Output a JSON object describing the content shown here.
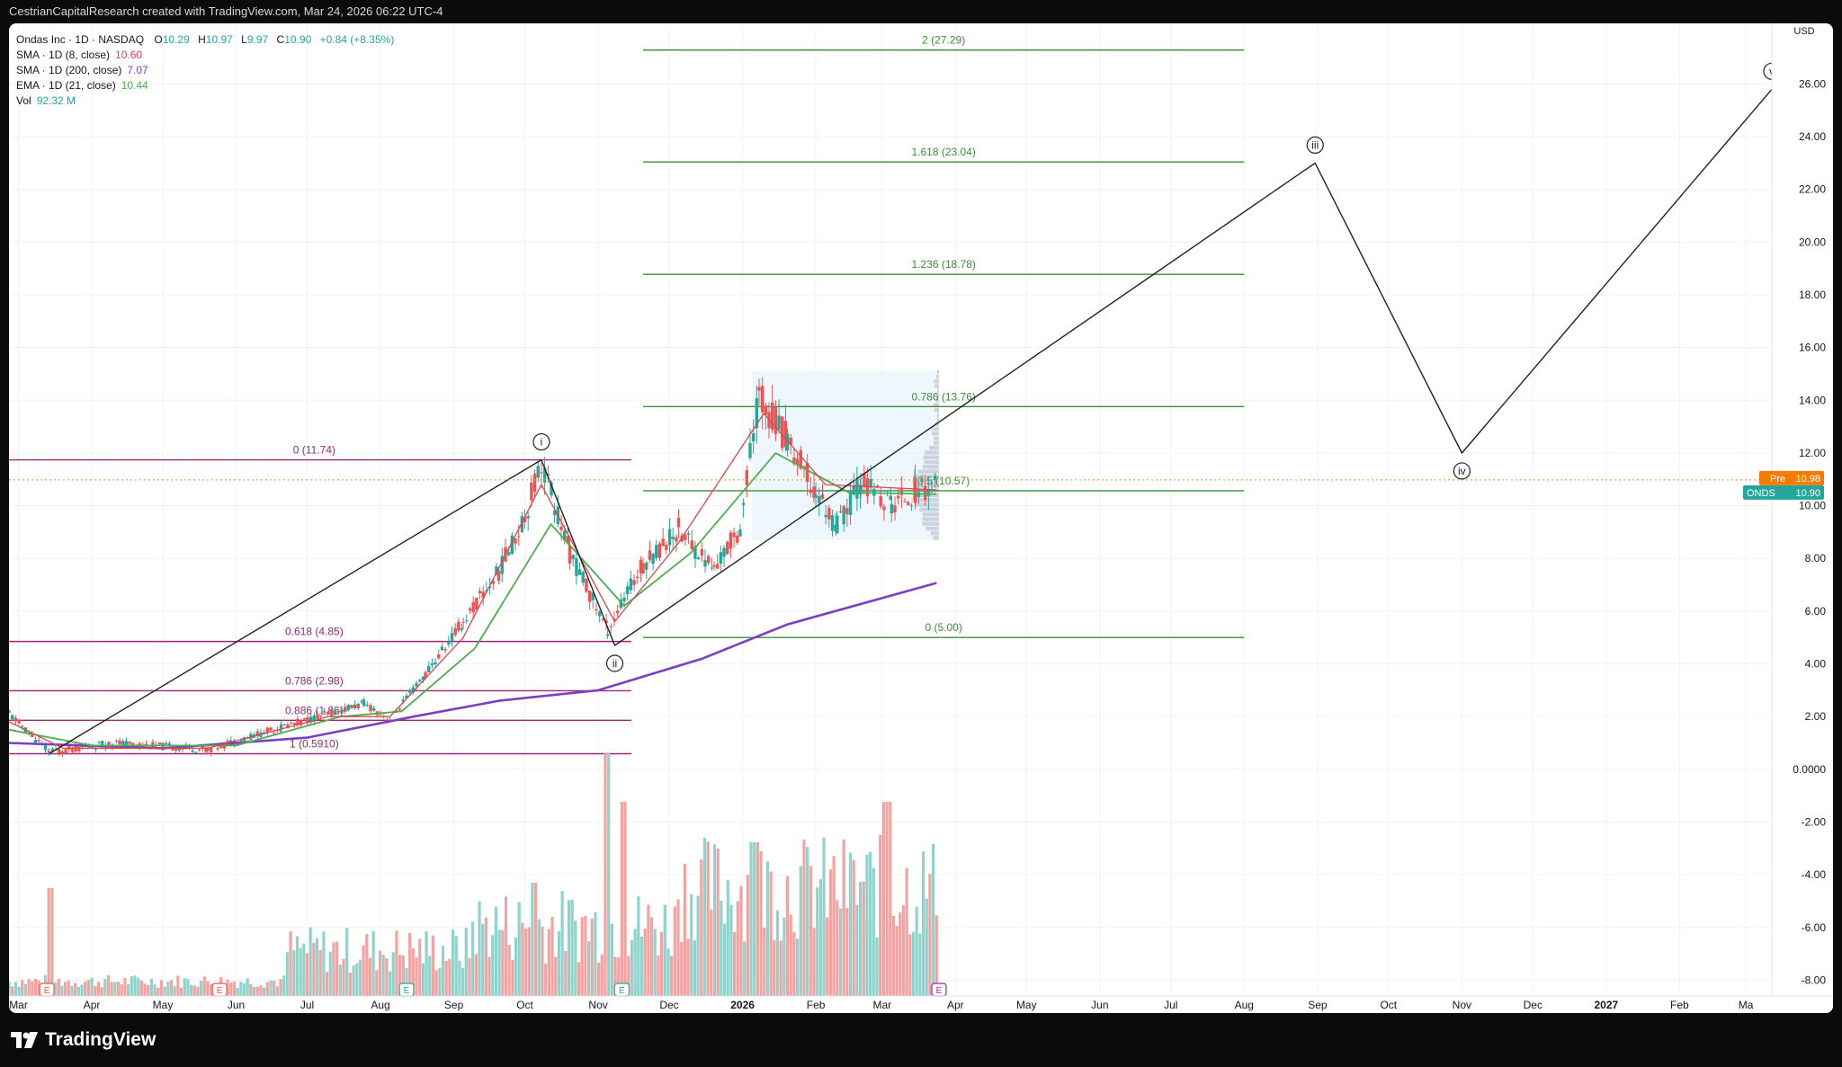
{
  "header": {
    "attribution": "CestrianCapitalResearch created with TradingView.com, Mar 24, 2026 06:22 UTC-4"
  },
  "legend": {
    "symbol_line": "Ondas Inc · 1D · NASDAQ",
    "ohlc": [
      {
        "label": "O",
        "value": "10.29"
      },
      {
        "label": "H",
        "value": "10.97"
      },
      {
        "label": "L",
        "value": "9.97"
      },
      {
        "label": "C",
        "value": "10.90"
      }
    ],
    "change": "+0.84 (+8.35%)",
    "indicators": [
      {
        "label": "SMA · 1D (8, close)",
        "value": "10.60",
        "color": "#e0444f"
      },
      {
        "label": "SMA · 1D (200, close)",
        "value": "7.07",
        "color": "#7b3fc4"
      },
      {
        "label": "EMA · 1D (21, close)",
        "value": "10.44",
        "color": "#4caf50"
      },
      {
        "label": "Vol",
        "value": "92.32 M",
        "color": "#26a69a"
      }
    ]
  },
  "colors": {
    "up": "#26a69a",
    "down": "#ef5350",
    "fib_left": "#9c2773",
    "fib_right": "#3f8b3f",
    "sma200": "#7b3fc4",
    "ema21": "#4caf50",
    "sma8": "#e0444f",
    "pre_badge": "#f57c00",
    "price_badge": "#26a69a"
  },
  "chart_data": {
    "type": "candlestick",
    "symbol": "ONDS",
    "currency": "USD",
    "y_axis_ticks": [
      "26.00",
      "24.00",
      "22.00",
      "20.00",
      "18.00",
      "16.00",
      "14.00",
      "12.00",
      "10.00",
      "8.00",
      "6.00",
      "4.00",
      "2.00",
      "0.0000",
      "-2.00",
      "-4.00",
      "-6.00",
      "-8.00"
    ],
    "ylim": [
      -8.6,
      28.3
    ],
    "x_axis_labels": [
      "Mar",
      "Apr",
      "May",
      "Jun",
      "Jul",
      "Aug",
      "Sep",
      "Oct",
      "Nov",
      "Dec",
      "2026",
      "Feb",
      "Mar",
      "Apr",
      "May",
      "Jun",
      "Jul",
      "Aug",
      "Sep",
      "Oct",
      "Nov",
      "Dec",
      "2027",
      "Feb",
      "Ma"
    ],
    "x_axis_dates": [
      "2025-03-01",
      "2025-04-01",
      "2025-05-01",
      "2025-06-01",
      "2025-07-01",
      "2025-08-01",
      "2025-09-01",
      "2025-10-01",
      "2025-11-01",
      "2025-12-01",
      "2026-01-01",
      "2026-02-01",
      "2026-03-01",
      "2026-04-01",
      "2026-05-01",
      "2026-06-01",
      "2026-07-01",
      "2026-08-01",
      "2026-09-01",
      "2026-10-01",
      "2026-11-01",
      "2026-12-01",
      "2027-01-01",
      "2027-02-01",
      "2027-03-01"
    ],
    "price_path": [
      [
        "2025-02-25",
        2.1
      ],
      [
        "2025-03-14",
        0.65
      ],
      [
        "2025-04-10",
        1.0
      ],
      [
        "2025-05-20",
        0.75
      ],
      [
        "2025-06-20",
        1.6
      ],
      [
        "2025-07-10",
        2.1
      ],
      [
        "2025-07-25",
        2.5
      ],
      [
        "2025-08-05",
        1.9
      ],
      [
        "2025-08-20",
        3.6
      ],
      [
        "2025-09-05",
        5.6
      ],
      [
        "2025-09-20",
        7.5
      ],
      [
        "2025-10-01",
        9.6
      ],
      [
        "2025-10-08",
        11.7
      ],
      [
        "2025-10-20",
        8.2
      ],
      [
        "2025-11-05",
        5.3
      ],
      [
        "2025-11-20",
        7.8
      ],
      [
        "2025-12-05",
        9.1
      ],
      [
        "2025-12-20",
        7.6
      ],
      [
        "2025-12-31",
        9.2
      ],
      [
        "2026-01-08",
        14.2
      ],
      [
        "2026-01-20",
        12.5
      ],
      [
        "2026-02-01",
        10.5
      ],
      [
        "2026-02-10",
        9.2
      ],
      [
        "2026-02-20",
        10.9
      ],
      [
        "2026-03-05",
        10.0
      ],
      [
        "2026-03-15",
        10.6
      ],
      [
        "2026-03-24",
        10.9
      ]
    ],
    "sma8_path": [
      [
        "2025-02-25",
        1.8
      ],
      [
        "2025-03-20",
        0.8
      ],
      [
        "2025-05-20",
        0.8
      ],
      [
        "2025-07-10",
        2.0
      ],
      [
        "2025-08-05",
        2.0
      ],
      [
        "2025-09-05",
        5.0
      ],
      [
        "2025-10-08",
        10.8
      ],
      [
        "2025-11-08",
        5.6
      ],
      [
        "2025-12-05",
        8.6
      ],
      [
        "2026-01-10",
        13.5
      ],
      [
        "2026-02-05",
        10.8
      ],
      [
        "2026-03-24",
        10.6
      ]
    ],
    "ema21_path": [
      [
        "2025-02-25",
        1.5
      ],
      [
        "2025-04-01",
        0.9
      ],
      [
        "2025-06-01",
        0.9
      ],
      [
        "2025-07-15",
        2.0
      ],
      [
        "2025-08-10",
        2.2
      ],
      [
        "2025-09-10",
        4.6
      ],
      [
        "2025-10-12",
        9.3
      ],
      [
        "2025-11-12",
        6.2
      ],
      [
        "2025-12-10",
        8.2
      ],
      [
        "2026-01-15",
        12.0
      ],
      [
        "2026-02-15",
        10.5
      ],
      [
        "2026-03-24",
        10.44
      ]
    ],
    "sma200_path": [
      [
        "2025-02-25",
        1.0
      ],
      [
        "2025-05-01",
        0.8
      ],
      [
        "2025-07-01",
        1.2
      ],
      [
        "2025-08-15",
        2.0
      ],
      [
        "2025-09-20",
        2.6
      ],
      [
        "2025-11-01",
        3.0
      ],
      [
        "2025-12-15",
        4.2
      ],
      [
        "2026-01-20",
        5.5
      ],
      [
        "2026-03-24",
        7.07
      ]
    ],
    "volume": {
      "bars_from": "2025-02-25",
      "bars_to": "2026-03-24",
      "scale_max": 100,
      "spikes": [
        [
          "2025-03-14",
          40
        ],
        [
          "2025-11-05",
          90
        ],
        [
          "2025-11-12",
          72
        ],
        [
          "2026-03-03",
          72
        ],
        [
          "2026-01-06",
          57
        ],
        [
          "2025-10-05",
          42
        ]
      ]
    },
    "earnings_markers": [
      {
        "date": "2025-03-13",
        "label": "E",
        "kind": "red"
      },
      {
        "date": "2025-05-25",
        "label": "E",
        "kind": "red"
      },
      {
        "date": "2025-08-12",
        "label": "E",
        "kind": "green"
      },
      {
        "date": "2025-11-11",
        "label": "E",
        "kind": "green"
      },
      {
        "date": "2026-03-25",
        "label": "E",
        "kind": "purple"
      }
    ],
    "fib_left": {
      "x_from": "2025-02-20",
      "x_to": "2025-11-15",
      "levels": [
        {
          "label": "0 (11.74)",
          "value": 11.74
        },
        {
          "label": "0.618 (4.85)",
          "value": 4.85
        },
        {
          "label": "0.786 (2.98)",
          "value": 2.98
        },
        {
          "label": "0.886 (1.86)",
          "value": 1.86
        },
        {
          "label": "1 (0.5910)",
          "value": 0.591
        }
      ]
    },
    "fib_right": {
      "x_from": "2025-11-20",
      "x_to": "2026-08-01",
      "levels": [
        {
          "label": "2 (27.29)",
          "value": 27.29
        },
        {
          "label": "1.618 (23.04)",
          "value": 23.04
        },
        {
          "label": "1.236 (18.78)",
          "value": 18.78
        },
        {
          "label": "0.786 (13.76)",
          "value": 13.76
        },
        {
          "label": "0.5 (10.57)",
          "value": 10.57
        },
        {
          "label": "0 (5.00)",
          "value": 5.0
        }
      ]
    },
    "wave_path": [
      [
        "2025-03-14",
        0.59
      ],
      [
        "2025-10-08",
        11.74
      ],
      [
        "2025-11-08",
        4.7
      ],
      [
        "2026-08-31",
        23.0
      ],
      [
        "2026-11-01",
        12.0
      ],
      [
        "2027-03-12",
        25.8
      ]
    ],
    "wave_labels": [
      {
        "label": "i",
        "date": "2025-10-08",
        "value": 11.74,
        "pos": "above"
      },
      {
        "label": "ii",
        "date": "2025-11-08",
        "value": 4.7,
        "pos": "below"
      },
      {
        "label": "iii",
        "date": "2026-08-31",
        "value": 23.0,
        "pos": "above"
      },
      {
        "label": "iv",
        "date": "2026-11-01",
        "value": 12.0,
        "pos": "below"
      },
      {
        "label": "v",
        "date": "2027-03-12",
        "value": 25.8,
        "pos": "above"
      }
    ],
    "volume_profile_range": {
      "x_from": "2026-01-05",
      "x_to": "2026-03-25",
      "y_from": 8.7,
      "y_to": 15.1
    },
    "last_price_line": 10.98,
    "price_badges": [
      {
        "label": "Pre",
        "value": "10.98",
        "kind": "pre"
      },
      {
        "label": "ONDS",
        "value": "10.90",
        "kind": "close"
      }
    ]
  },
  "footer": {
    "brand": "TradingView"
  }
}
